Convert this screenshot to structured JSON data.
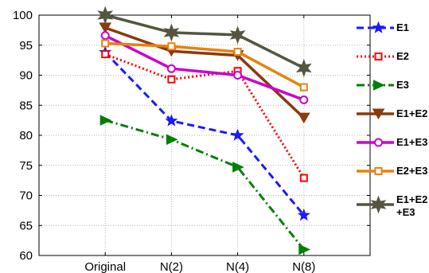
{
  "chart_data": {
    "type": "line",
    "title": "",
    "xlabel": "",
    "ylabel": "",
    "categories": [
      "Original",
      "N(2)",
      "N(4)",
      "N(8)"
    ],
    "ylim": [
      60,
      100
    ],
    "yticks": [
      60,
      65,
      70,
      75,
      80,
      85,
      90,
      95,
      100
    ],
    "grid": true,
    "legend_position": "right",
    "series": [
      {
        "name": "E1",
        "values": [
          93.8,
          82.4,
          80.0,
          66.7
        ],
        "color": "#1a1aff",
        "dash": "dashed",
        "marker": "star",
        "legend_lines": [
          "E1"
        ]
      },
      {
        "name": "E2",
        "values": [
          93.5,
          89.3,
          90.7,
          72.9
        ],
        "color": "#ff0000",
        "dash": "dotted",
        "marker": "square",
        "legend_lines": [
          "E2"
        ]
      },
      {
        "name": "E3",
        "values": [
          82.5,
          79.3,
          74.7,
          61.0
        ],
        "color": "#008000",
        "dash": "dashdot",
        "marker": "triangle-right",
        "legend_lines": [
          "E3"
        ]
      },
      {
        "name": "E1+E2",
        "values": [
          97.9,
          94.0,
          93.3,
          82.9
        ],
        "color": "#8b3a0e",
        "dash": "solid",
        "marker": "triangle-down",
        "legend_lines": [
          "E1+E2"
        ]
      },
      {
        "name": "E1+E3",
        "values": [
          96.6,
          91.1,
          90.0,
          85.9
        ],
        "color": "#cc00cc",
        "dash": "solid",
        "marker": "circle",
        "legend_lines": [
          "E1+E3"
        ]
      },
      {
        "name": "E2+E3",
        "values": [
          95.3,
          94.8,
          93.9,
          88.0
        ],
        "color": "#e8820c",
        "dash": "solid",
        "marker": "square",
        "legend_lines": [
          "E2+E3"
        ]
      },
      {
        "name": "E1+E2+E3",
        "values": [
          100.0,
          97.1,
          96.7,
          91.2
        ],
        "color": "#555540",
        "dash": "solid",
        "marker": "hexagram",
        "legend_lines": [
          "E1+E2",
          "+E3"
        ]
      }
    ]
  }
}
